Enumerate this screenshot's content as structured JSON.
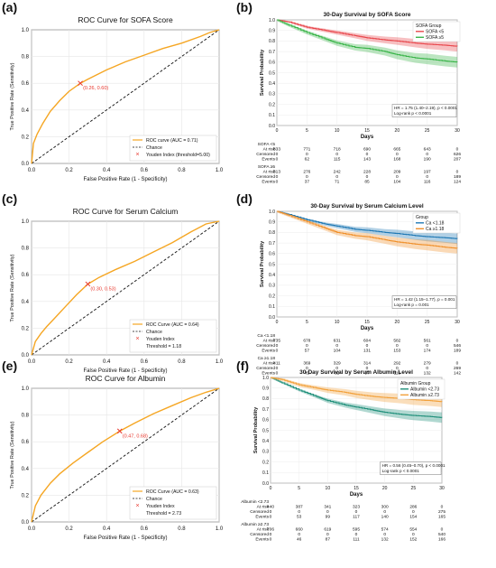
{
  "panels": [
    {
      "letter": "(a)",
      "title": "ROC Curve for SOFA Score",
      "xlabel": "False Positive Rate (1 - Specificity)",
      "ylabel": "True Positive Rate (Sensitivity)",
      "annotation": "(0.26, 0.60)",
      "legend": [
        "ROC curve (AUC = 0.71)",
        "Chance",
        "Youden Index (threshold=5.00)"
      ]
    },
    {
      "letter": "(b)",
      "title": "30-Day Survival by SOFA Score",
      "xlabel": "Days",
      "ylabel": "Survival Probability",
      "legend_title": "SOFA Group",
      "stats": [
        "HR = 1.75 (1.40–2.19), p < 0.0001",
        "Log-rank p < 0.0001"
      ],
      "risk_table": [
        {
          "group": "SOFA <5",
          "rows": [
            [
              "At risk",
              "833",
              "771",
              "718",
              "690",
              "665",
              "643",
              "0"
            ],
            [
              "Censored",
              "0",
              "0",
              "0",
              "0",
              "0",
              "0",
              "626"
            ],
            [
              "Events",
              "0",
              "62",
              "115",
              "143",
              "168",
              "190",
              "207"
            ]
          ]
        },
        {
          "group": "SOFA ≥5",
          "rows": [
            [
              "At risk",
              "313",
              "276",
              "242",
              "228",
              "209",
              "197",
              "0"
            ],
            [
              "Censored",
              "0",
              "0",
              "0",
              "0",
              "0",
              "0",
              "189"
            ],
            [
              "Events",
              "0",
              "37",
              "71",
              "85",
              "104",
              "116",
              "124"
            ]
          ]
        }
      ]
    },
    {
      "letter": "(c)",
      "title": "ROC Curve for Serum Calcium",
      "xlabel": "False Positive Rate (1 - Specificity)",
      "ylabel": "True Positive Rate (Sensitivity)",
      "annotation": "(0.30, 0.53)",
      "legend": [
        "ROC Curve (AUC = 0.64)",
        "Chance",
        "Youden Index",
        "Threshold = 1.18"
      ]
    },
    {
      "letter": "(d)",
      "title": "30-Day Survival by Serum Calcium Level",
      "xlabel": "Days",
      "ylabel": "Survival Probability",
      "legend_title": "Group",
      "stats": [
        "HR = 1.42 (1.15–1.77), p = 0.001",
        "Log-rank p = 0.001"
      ],
      "risk_table": [
        {
          "group": "Ca <1.18",
          "rows": [
            [
              "At risk",
              "735",
              "678",
              "631",
              "604",
              "582",
              "561",
              "0"
            ],
            [
              "Censored",
              "0",
              "0",
              "0",
              "0",
              "0",
              "0",
              "546"
            ],
            [
              "Events",
              "0",
              "57",
              "104",
              "131",
              "153",
              "174",
              "189"
            ]
          ]
        },
        {
          "group": "Ca ≥1.18",
          "rows": [
            [
              "At risk",
              "411",
              "369",
              "329",
              "314",
              "292",
              "279",
              "0"
            ],
            [
              "Censored",
              "0",
              "0",
              "0",
              "0",
              "0",
              "0",
              "269"
            ],
            [
              "Events",
              "0",
              "42",
              "82",
              "97",
              "119",
              "132",
              "142"
            ]
          ]
        }
      ]
    },
    {
      "letter": "(e)",
      "title": "ROC Curve for Albumin",
      "xlabel": "False Positive Rate (1 - Specificity)",
      "ylabel": "True Positive Rate (Sensitivity)",
      "annotation": "(0.47, 0.68)",
      "legend": [
        "ROC Curve (AUC = 0.63)",
        "Chance",
        "Youden Index",
        "Threshold = 2.73"
      ]
    },
    {
      "letter": "(f)",
      "title": "30-Day Survival by Serum Albumin Level",
      "xlabel": "Days",
      "ylabel": "Survival Probability",
      "legend_title": "Albumin Group",
      "stats": [
        "HR = 0.56 (0.45–0.70), p < 0.0001",
        "Log-rank p < 0.0001"
      ],
      "risk_table": [
        {
          "group": "Albumin <2.73",
          "rows": [
            [
              "At risk",
              "440",
              "387",
              "341",
              "323",
              "300",
              "286",
              "0"
            ],
            [
              "Censored",
              "0",
              "0",
              "0",
              "0",
              "0",
              "0",
              "275"
            ],
            [
              "Events",
              "0",
              "53",
              "99",
              "117",
              "140",
              "154",
              "165"
            ]
          ]
        },
        {
          "group": "Albumin ≥2.73",
          "rows": [
            [
              "At risk",
              "706",
              "660",
              "619",
              "595",
              "574",
              "554",
              "0"
            ],
            [
              "Censored",
              "0",
              "0",
              "0",
              "0",
              "0",
              "0",
              "540"
            ],
            [
              "Events",
              "0",
              "46",
              "87",
              "111",
              "132",
              "152",
              "166"
            ]
          ]
        }
      ]
    }
  ],
  "colors": {
    "roc": "#f5a623",
    "chance": "#111111",
    "youden": "#e8382e",
    "red": "#e8474c",
    "green": "#3bb54a",
    "blue": "#1f78b4",
    "orange": "#f0912d",
    "teal": "#1f8f7a",
    "lightorange": "#f2a13b"
  },
  "chart_data": [
    {
      "type": "line",
      "title": "ROC Curve for SOFA Score",
      "xlabel": "False Positive Rate (1 - Specificity)",
      "ylabel": "True Positive Rate (Sensitivity)",
      "xlim": [
        0,
        1
      ],
      "ylim": [
        0,
        1
      ],
      "series": [
        {
          "name": "ROC curve (AUC = 0.71)",
          "x": [
            0,
            0.01,
            0.03,
            0.06,
            0.1,
            0.15,
            0.2,
            0.26,
            0.3,
            0.4,
            0.5,
            0.6,
            0.7,
            0.8,
            0.9,
            0.95,
            1.0
          ],
          "y": [
            0,
            0.15,
            0.22,
            0.3,
            0.39,
            0.47,
            0.54,
            0.6,
            0.63,
            0.7,
            0.76,
            0.81,
            0.86,
            0.9,
            0.95,
            0.98,
            1.0
          ]
        }
      ],
      "youden": {
        "x": 0.26,
        "y": 0.6
      }
    },
    {
      "type": "line",
      "title": "30-Day Survival by SOFA Score",
      "xlabel": "Days",
      "ylabel": "Survival Probability",
      "xlim": [
        0,
        30
      ],
      "ylim": [
        0,
        1
      ],
      "x": [
        0,
        2,
        5,
        8,
        10,
        13,
        15,
        18,
        20,
        23,
        25,
        28,
        30
      ],
      "series": [
        {
          "name": "SOFA <5",
          "values": [
            1.0,
            0.98,
            0.93,
            0.9,
            0.88,
            0.85,
            0.83,
            0.81,
            0.8,
            0.78,
            0.77,
            0.76,
            0.75
          ]
        },
        {
          "name": "SOFA ≥5",
          "values": [
            1.0,
            0.95,
            0.88,
            0.82,
            0.78,
            0.74,
            0.73,
            0.7,
            0.67,
            0.64,
            0.63,
            0.61,
            0.6
          ]
        }
      ]
    },
    {
      "type": "line",
      "title": "ROC Curve for Serum Calcium",
      "xlabel": "False Positive Rate (1 - Specificity)",
      "ylabel": "True Positive Rate (Sensitivity)",
      "xlim": [
        0,
        1
      ],
      "ylim": [
        0,
        1
      ],
      "series": [
        {
          "name": "ROC Curve (AUC = 0.64)",
          "x": [
            0,
            0.02,
            0.05,
            0.08,
            0.12,
            0.18,
            0.24,
            0.3,
            0.36,
            0.45,
            0.55,
            0.65,
            0.75,
            0.85,
            0.93,
            1.0
          ],
          "y": [
            0,
            0.1,
            0.16,
            0.21,
            0.27,
            0.36,
            0.45,
            0.53,
            0.58,
            0.64,
            0.7,
            0.77,
            0.84,
            0.92,
            0.98,
            1.0
          ]
        }
      ],
      "youden": {
        "x": 0.3,
        "y": 0.53
      }
    },
    {
      "type": "line",
      "title": "30-Day Survival by Serum Calcium Level",
      "xlabel": "Days",
      "ylabel": "Survival Probability",
      "xlim": [
        0,
        30
      ],
      "ylim": [
        0,
        1
      ],
      "x": [
        0,
        2,
        5,
        8,
        10,
        13,
        15,
        18,
        20,
        23,
        25,
        28,
        30
      ],
      "series": [
        {
          "name": "Ca <1.18",
          "values": [
            1.0,
            0.97,
            0.92,
            0.88,
            0.86,
            0.83,
            0.82,
            0.8,
            0.79,
            0.77,
            0.76,
            0.75,
            0.74
          ]
        },
        {
          "name": "Ca ≥1.18",
          "values": [
            1.0,
            0.96,
            0.9,
            0.84,
            0.8,
            0.77,
            0.76,
            0.73,
            0.71,
            0.69,
            0.68,
            0.66,
            0.65
          ]
        }
      ]
    },
    {
      "type": "line",
      "title": "ROC Curve for Albumin",
      "xlabel": "False Positive Rate (1 - Specificity)",
      "ylabel": "True Positive Rate (Sensitivity)",
      "xlim": [
        0,
        1
      ],
      "ylim": [
        0,
        1
      ],
      "series": [
        {
          "name": "ROC Curve (AUC = 0.63)",
          "x": [
            0,
            0.02,
            0.05,
            0.1,
            0.15,
            0.22,
            0.3,
            0.38,
            0.47,
            0.55,
            0.65,
            0.75,
            0.85,
            0.93,
            1.0
          ],
          "y": [
            0,
            0.12,
            0.2,
            0.29,
            0.36,
            0.44,
            0.52,
            0.6,
            0.68,
            0.74,
            0.81,
            0.87,
            0.93,
            0.97,
            1.0
          ]
        }
      ],
      "youden": {
        "x": 0.47,
        "y": 0.68
      }
    },
    {
      "type": "line",
      "title": "30-Day Survival by Serum Albumin Level",
      "xlabel": "Days",
      "ylabel": "Survival Probability",
      "xlim": [
        0,
        30
      ],
      "ylim": [
        0,
        1
      ],
      "x": [
        0,
        2,
        5,
        8,
        10,
        13,
        15,
        18,
        20,
        23,
        25,
        28,
        30
      ],
      "series": [
        {
          "name": "Albumin <2.73",
          "values": [
            1.0,
            0.95,
            0.88,
            0.82,
            0.78,
            0.74,
            0.72,
            0.69,
            0.67,
            0.65,
            0.64,
            0.63,
            0.62
          ]
        },
        {
          "name": "Albumin ≥2.73",
          "values": [
            1.0,
            0.98,
            0.93,
            0.9,
            0.88,
            0.86,
            0.84,
            0.82,
            0.81,
            0.8,
            0.79,
            0.78,
            0.77
          ]
        }
      ]
    }
  ]
}
